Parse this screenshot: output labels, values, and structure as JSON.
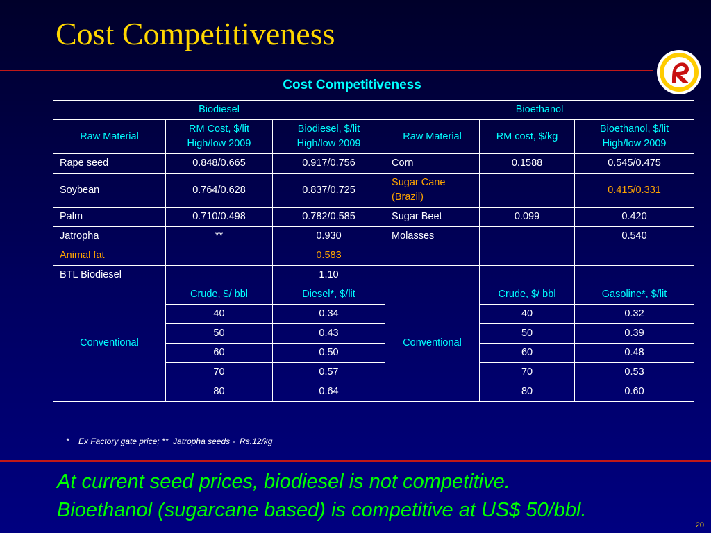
{
  "slide": {
    "title": "Cost Competitiveness",
    "table_caption": "Cost Competitiveness",
    "footnote": "*    Ex Factory gate price; **  Jatropha seeds -  Rs.12/kg",
    "conclusion": [
      "At current seed prices, biodiesel is not competitive.",
      "Bioethanol (sugarcane based) is competitive at US$ 50/bbl."
    ],
    "page_number": "20"
  },
  "logo": {
    "icon": "reliance-logo-icon",
    "ring_color": "#ffcc00",
    "symbol_color": "#c81010"
  },
  "colors": {
    "title": "#ffd700",
    "header_text": "#00ffff",
    "highlight_text": "#ffa500",
    "conclusion_text": "#00ff00",
    "rule": "#c01818",
    "background": "#000060"
  },
  "table": {
    "sections": {
      "biodiesel": "Biodiesel",
      "bioethanol": "Bioethanol"
    },
    "headers": {
      "bd_raw": "Raw Material",
      "bd_rm_cost_1": "RM Cost, $/lit",
      "bd_rm_cost_2": "High/low 2009",
      "bd_price_1": "Biodiesel, $/lit",
      "bd_price_2": "High/low 2009",
      "be_raw": "Raw Material",
      "be_rm_cost": "RM cost, $/kg",
      "be_price_1": "Bioethanol, $/lit",
      "be_price_2": "High/low 2009"
    },
    "rows": [
      [
        "Rape seed",
        "0.848/0.665",
        "0.917/0.756",
        "Corn",
        "0.1588",
        "0.545/0.475"
      ],
      [
        "Soybean",
        "0.764/0.628",
        "0.837/0.725",
        "Sugar Cane (Brazil)",
        "",
        "0.415/0.331"
      ],
      [
        "Palm",
        "0.710/0.498",
        "0.782/0.585",
        "Sugar Beet",
        "0.099",
        "0.420"
      ],
      [
        "Jatropha",
        "**",
        "0.930",
        "Molasses",
        "",
        "0.540"
      ],
      [
        "Animal fat",
        "",
        "0.583",
        "",
        "",
        ""
      ],
      [
        "BTL Biodiesel",
        "",
        "1.10",
        "",
        "",
        ""
      ]
    ],
    "conventional": {
      "label_left": "Conventional",
      "label_right": "Conventional",
      "headers": [
        "Crude, $/ bbl",
        "Diesel*, $/lit",
        "Crude, $/ bbl",
        "Gasoline*, $/lit"
      ],
      "rows": [
        [
          "40",
          "0.34",
          "40",
          "0.32"
        ],
        [
          "50",
          "0.43",
          "50",
          "0.39"
        ],
        [
          "60",
          "0.50",
          "60",
          "0.48"
        ],
        [
          "70",
          "0.57",
          "70",
          "0.53"
        ],
        [
          "80",
          "0.64",
          "80",
          "0.60"
        ]
      ]
    }
  }
}
